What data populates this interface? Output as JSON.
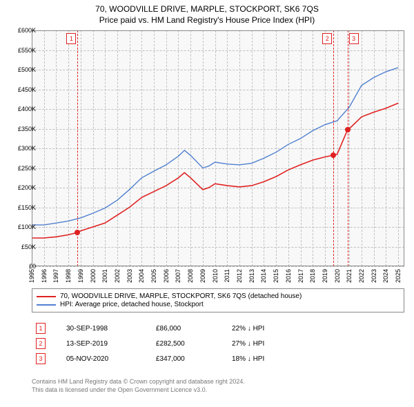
{
  "title_line1": "70, WOODVILLE DRIVE, MARPLE, STOCKPORT, SK6 7QS",
  "title_line2": "Price paid vs. HM Land Registry's House Price Index (HPI)",
  "chart": {
    "type": "line",
    "background_color": "#f8f8f8",
    "grid_color": "#c0c0c0",
    "border_color": "#888888",
    "x_range": [
      1995,
      2025.5
    ],
    "y_range": [
      0,
      600000
    ],
    "y_ticks": [
      0,
      50000,
      100000,
      150000,
      200000,
      250000,
      300000,
      350000,
      400000,
      450000,
      500000,
      550000,
      600000
    ],
    "y_tick_labels": [
      "£0",
      "£50K",
      "£100K",
      "£150K",
      "£200K",
      "£250K",
      "£300K",
      "£350K",
      "£400K",
      "£450K",
      "£500K",
      "£550K",
      "£600K"
    ],
    "x_ticks": [
      1995,
      1996,
      1997,
      1998,
      1999,
      2000,
      2001,
      2002,
      2003,
      2004,
      2005,
      2006,
      2007,
      2008,
      2009,
      2010,
      2011,
      2012,
      2013,
      2014,
      2015,
      2016,
      2017,
      2018,
      2019,
      2020,
      2021,
      2022,
      2023,
      2024,
      2025
    ],
    "x_tick_labels": [
      "1995",
      "1996",
      "1997",
      "1998",
      "1999",
      "2000",
      "2001",
      "2002",
      "2003",
      "2004",
      "2005",
      "2006",
      "2007",
      "2008",
      "2009",
      "2010",
      "2011",
      "2012",
      "2013",
      "2014",
      "2015",
      "2016",
      "2017",
      "2018",
      "2019",
      "2020",
      "2021",
      "2022",
      "2023",
      "2024",
      "2025"
    ],
    "marker_lines": [
      {
        "x": 1998.75,
        "label": "1",
        "label_side": "left"
      },
      {
        "x": 2019.7,
        "label": "2",
        "label_side": "left"
      },
      {
        "x": 2020.85,
        "label": "3",
        "label_side": "right"
      }
    ],
    "series": [
      {
        "name": "property",
        "color": "#e02020",
        "width": 1.6,
        "points": [
          [
            1995,
            72000
          ],
          [
            1996,
            72000
          ],
          [
            1997,
            75000
          ],
          [
            1998,
            80000
          ],
          [
            1998.75,
            86000
          ],
          [
            1999,
            90000
          ],
          [
            2000,
            100000
          ],
          [
            2001,
            110000
          ],
          [
            2002,
            130000
          ],
          [
            2003,
            150000
          ],
          [
            2004,
            175000
          ],
          [
            2005,
            190000
          ],
          [
            2006,
            205000
          ],
          [
            2007,
            225000
          ],
          [
            2007.5,
            238000
          ],
          [
            2008,
            225000
          ],
          [
            2009,
            195000
          ],
          [
            2009.5,
            200000
          ],
          [
            2010,
            210000
          ],
          [
            2011,
            205000
          ],
          [
            2012,
            202000
          ],
          [
            2013,
            205000
          ],
          [
            2014,
            215000
          ],
          [
            2015,
            228000
          ],
          [
            2016,
            245000
          ],
          [
            2017,
            258000
          ],
          [
            2018,
            270000
          ],
          [
            2019,
            278000
          ],
          [
            2019.7,
            282500
          ],
          [
            2020,
            285000
          ],
          [
            2020.85,
            347000
          ],
          [
            2021,
            350000
          ],
          [
            2022,
            380000
          ],
          [
            2023,
            392000
          ],
          [
            2024,
            402000
          ],
          [
            2025,
            415000
          ]
        ]
      },
      {
        "name": "hpi",
        "color": "#5080d0",
        "width": 1.4,
        "points": [
          [
            1995,
            105000
          ],
          [
            1996,
            105000
          ],
          [
            1997,
            110000
          ],
          [
            1998,
            115000
          ],
          [
            1999,
            123000
          ],
          [
            2000,
            135000
          ],
          [
            2001,
            148000
          ],
          [
            2002,
            168000
          ],
          [
            2003,
            195000
          ],
          [
            2004,
            225000
          ],
          [
            2005,
            242000
          ],
          [
            2006,
            258000
          ],
          [
            2007,
            280000
          ],
          [
            2007.5,
            295000
          ],
          [
            2008,
            282000
          ],
          [
            2009,
            250000
          ],
          [
            2009.5,
            255000
          ],
          [
            2010,
            265000
          ],
          [
            2011,
            260000
          ],
          [
            2012,
            258000
          ],
          [
            2013,
            262000
          ],
          [
            2014,
            275000
          ],
          [
            2015,
            290000
          ],
          [
            2016,
            310000
          ],
          [
            2017,
            325000
          ],
          [
            2018,
            345000
          ],
          [
            2019,
            360000
          ],
          [
            2020,
            370000
          ],
          [
            2021,
            405000
          ],
          [
            2022,
            460000
          ],
          [
            2023,
            480000
          ],
          [
            2024,
            495000
          ],
          [
            2025,
            505000
          ]
        ]
      }
    ],
    "sale_points": [
      {
        "x": 1998.75,
        "y": 86000
      },
      {
        "x": 2019.7,
        "y": 282500
      },
      {
        "x": 2020.85,
        "y": 347000
      }
    ]
  },
  "legend": [
    {
      "color": "#e02020",
      "label": "70, WOODVILLE DRIVE, MARPLE, STOCKPORT, SK6 7QS (detached house)"
    },
    {
      "color": "#5080d0",
      "label": "HPI: Average price, detached house, Stockport"
    }
  ],
  "markers_table": [
    {
      "n": "1",
      "date": "30-SEP-1998",
      "price": "£86,000",
      "pct": "22% ↓ HPI"
    },
    {
      "n": "2",
      "date": "13-SEP-2019",
      "price": "£282,500",
      "pct": "27% ↓ HPI"
    },
    {
      "n": "3",
      "date": "05-NOV-2020",
      "price": "£347,000",
      "pct": "18% ↓ HPI"
    }
  ],
  "footer_line1": "Contains HM Land Registry data © Crown copyright and database right 2024.",
  "footer_line2": "This data is licensed under the Open Government Licence v3.0."
}
